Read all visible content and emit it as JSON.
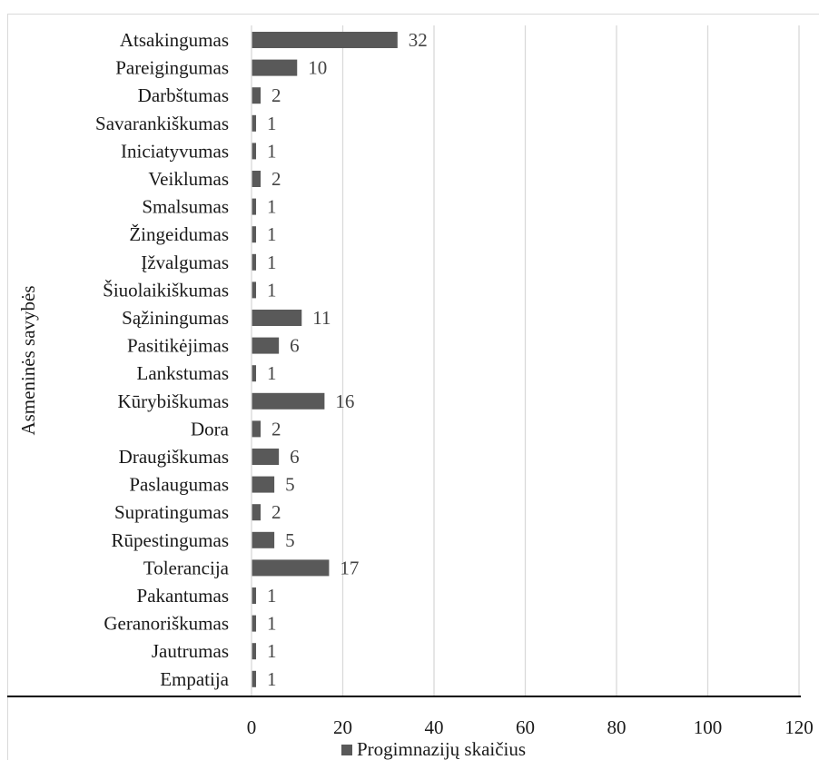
{
  "chart_data": {
    "type": "bar",
    "orientation": "horizontal",
    "categories": [
      "Atsakingumas",
      "Pareigingumas",
      "Darbštumas",
      "Savarankiškumas",
      "Iniciatyvumas",
      "Veiklumas",
      "Smalsumas",
      "Žingeidumas",
      "Įžvalgumas",
      "Šiuolaikiškumas",
      "Sąžiningumas",
      "Pasitikėjimas",
      "Lankstumas",
      "Kūrybiškumas",
      "Dora",
      "Draugiškumas",
      "Paslaugumas",
      "Supratingumas",
      "Rūpestingumas",
      "Tolerancija",
      "Pakantumas",
      "Geranoriškumas",
      "Jautrumas",
      "Empatija"
    ],
    "series": [
      {
        "name": "Progimnazijų skaičius",
        "values": [
          32,
          10,
          2,
          1,
          1,
          2,
          1,
          1,
          1,
          1,
          11,
          6,
          1,
          16,
          2,
          6,
          5,
          2,
          5,
          17,
          1,
          1,
          1,
          1
        ],
        "color": "#595959"
      }
    ],
    "ylabel": "Asmeninės savybės",
    "xlabel": "",
    "xlim": [
      0,
      120
    ],
    "xticks": [
      0,
      20,
      40,
      60,
      80,
      100,
      120
    ],
    "grid": "vertical",
    "legend": "bottom",
    "data_labels": true
  },
  "colors": {
    "bar": "#595959",
    "grid": "#d9d9d9",
    "axis": "#000000"
  }
}
